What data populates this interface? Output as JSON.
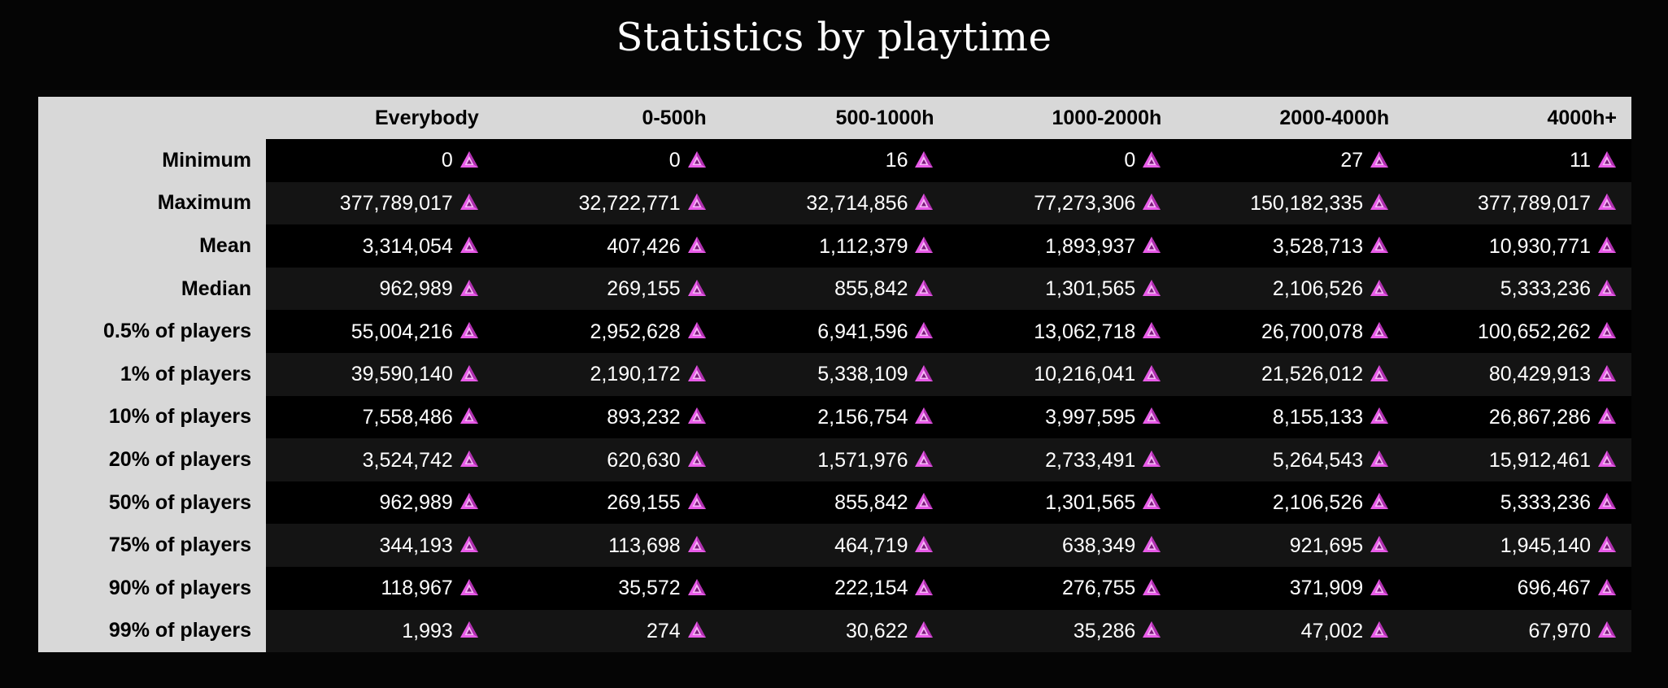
{
  "title": "Statistics by playtime",
  "currency_icon": "pink-triangle-currency-icon",
  "accent_color": "#e85ce8",
  "columns": [
    "Everybody",
    "0-500h",
    "500-1000h",
    "1000-2000h",
    "2000-4000h",
    "4000h+"
  ],
  "rows": [
    {
      "label": "Minimum",
      "values": [
        "0",
        "0",
        "16",
        "0",
        "27",
        "11"
      ]
    },
    {
      "label": "Maximum",
      "values": [
        "377,789,017",
        "32,722,771",
        "32,714,856",
        "77,273,306",
        "150,182,335",
        "377,789,017"
      ]
    },
    {
      "label": "Mean",
      "values": [
        "3,314,054",
        "407,426",
        "1,112,379",
        "1,893,937",
        "3,528,713",
        "10,930,771"
      ]
    },
    {
      "label": "Median",
      "values": [
        "962,989",
        "269,155",
        "855,842",
        "1,301,565",
        "2,106,526",
        "5,333,236"
      ]
    },
    {
      "label": "0.5% of players",
      "values": [
        "55,004,216",
        "2,952,628",
        "6,941,596",
        "13,062,718",
        "26,700,078",
        "100,652,262"
      ]
    },
    {
      "label": "1% of players",
      "values": [
        "39,590,140",
        "2,190,172",
        "5,338,109",
        "10,216,041",
        "21,526,012",
        "80,429,913"
      ]
    },
    {
      "label": "10% of players",
      "values": [
        "7,558,486",
        "893,232",
        "2,156,754",
        "3,997,595",
        "8,155,133",
        "26,867,286"
      ]
    },
    {
      "label": "20% of players",
      "values": [
        "3,524,742",
        "620,630",
        "1,571,976",
        "2,733,491",
        "5,264,543",
        "15,912,461"
      ]
    },
    {
      "label": "50% of players",
      "values": [
        "962,989",
        "269,155",
        "855,842",
        "1,301,565",
        "2,106,526",
        "5,333,236"
      ]
    },
    {
      "label": "75% of players",
      "values": [
        "344,193",
        "113,698",
        "464,719",
        "638,349",
        "921,695",
        "1,945,140"
      ]
    },
    {
      "label": "90% of players",
      "values": [
        "118,967",
        "35,572",
        "222,154",
        "276,755",
        "371,909",
        "696,467"
      ]
    },
    {
      "label": "99% of players",
      "values": [
        "1,993",
        "274",
        "30,622",
        "35,286",
        "47,002",
        "67,970"
      ]
    }
  ]
}
